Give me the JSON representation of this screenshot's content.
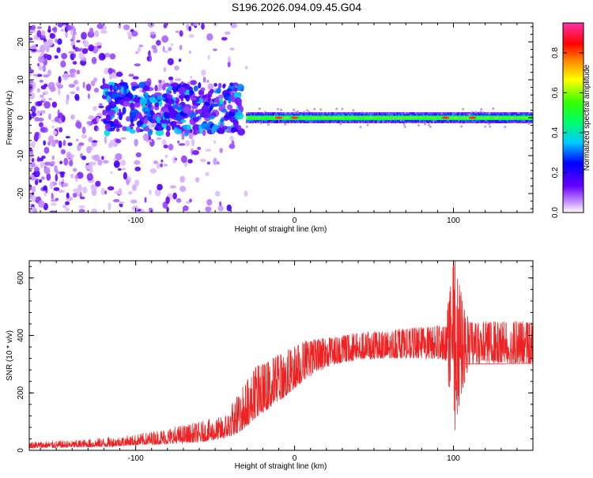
{
  "title": "S196.2026.094.09.45.G04",
  "chart_data": [
    {
      "type": "heatmap",
      "xlabel": "Height of straight line (km)",
      "ylabel": "Frequency (Hz)",
      "xlim": [
        -167,
        150
      ],
      "ylim": [
        -25,
        25
      ],
      "xticks": [
        -100,
        0,
        100
      ],
      "yticks": [
        20,
        10,
        0,
        -10,
        -20
      ],
      "xtick_labels": [
        "-100",
        "0",
        "100"
      ],
      "ytick_labels": [
        "20",
        "10",
        "0",
        "-10",
        "-20"
      ],
      "grid": false,
      "colorbar": {
        "label": "Normalized spectral amplitude",
        "range": [
          0,
          0.95
        ],
        "ticks": [
          0.0,
          0.2,
          0.4,
          0.6,
          0.8
        ],
        "tick_labels": [
          "0.0",
          "0.2",
          "0.4",
          "0.6",
          "0.8"
        ],
        "colormap": [
          "#ffffff",
          "#9966ff",
          "#6600ff",
          "#0000ff",
          "#00ffff",
          "#00ff00",
          "#ffff00",
          "#ff0000",
          "#ff00ff"
        ]
      },
      "features": [
        {
          "region": "scatter",
          "x_range": [
            -167,
            -30
          ],
          "freq_range": [
            -25,
            25
          ],
          "amplitude": "low"
        },
        {
          "region": "cluster",
          "x_range": [
            -120,
            -33
          ],
          "freq_range": [
            -4,
            9
          ],
          "amplitude": "medium"
        },
        {
          "region": "band",
          "x_range": [
            -30,
            150
          ],
          "freq_center": 0,
          "freq_halfwidth": 1.2,
          "amplitude": "high"
        },
        {
          "region": "peaks",
          "x": [
            -10,
            0,
            95,
            112
          ],
          "freq": 0,
          "amplitude": "max"
        }
      ]
    },
    {
      "type": "line",
      "xlabel": "Height of straight line (km)",
      "ylabel": "SNR (10 * v/v)",
      "xlim": [
        -167,
        150
      ],
      "ylim": [
        0,
        660
      ],
      "xticks": [
        -100,
        0,
        100
      ],
      "yticks": [
        0,
        200,
        400,
        600
      ],
      "xtick_labels": [
        "-100",
        "0",
        "100"
      ],
      "ytick_labels": [
        "0",
        "200",
        "400",
        "600"
      ],
      "grid": false,
      "color": "#ee2222",
      "envelope": {
        "x": [
          -167,
          -140,
          -120,
          -100,
          -80,
          -60,
          -45,
          -35,
          -25,
          -15,
          -5,
          5,
          15,
          25,
          40,
          60,
          80,
          95,
          100,
          110,
          130,
          150
        ],
        "low": [
          8,
          10,
          12,
          18,
          22,
          28,
          40,
          60,
          110,
          150,
          190,
          240,
          275,
          300,
          315,
          320,
          320,
          315,
          70,
          300,
          305,
          300
        ],
        "high": [
          32,
          35,
          45,
          55,
          80,
          100,
          120,
          200,
          290,
          320,
          350,
          380,
          390,
          395,
          410,
          420,
          430,
          440,
          660,
          445,
          450,
          450
        ]
      },
      "spikes": [
        {
          "x": 101,
          "y": 660
        },
        {
          "x": 101,
          "y": 70
        },
        {
          "x": 100.5,
          "y": 560
        }
      ]
    }
  ]
}
